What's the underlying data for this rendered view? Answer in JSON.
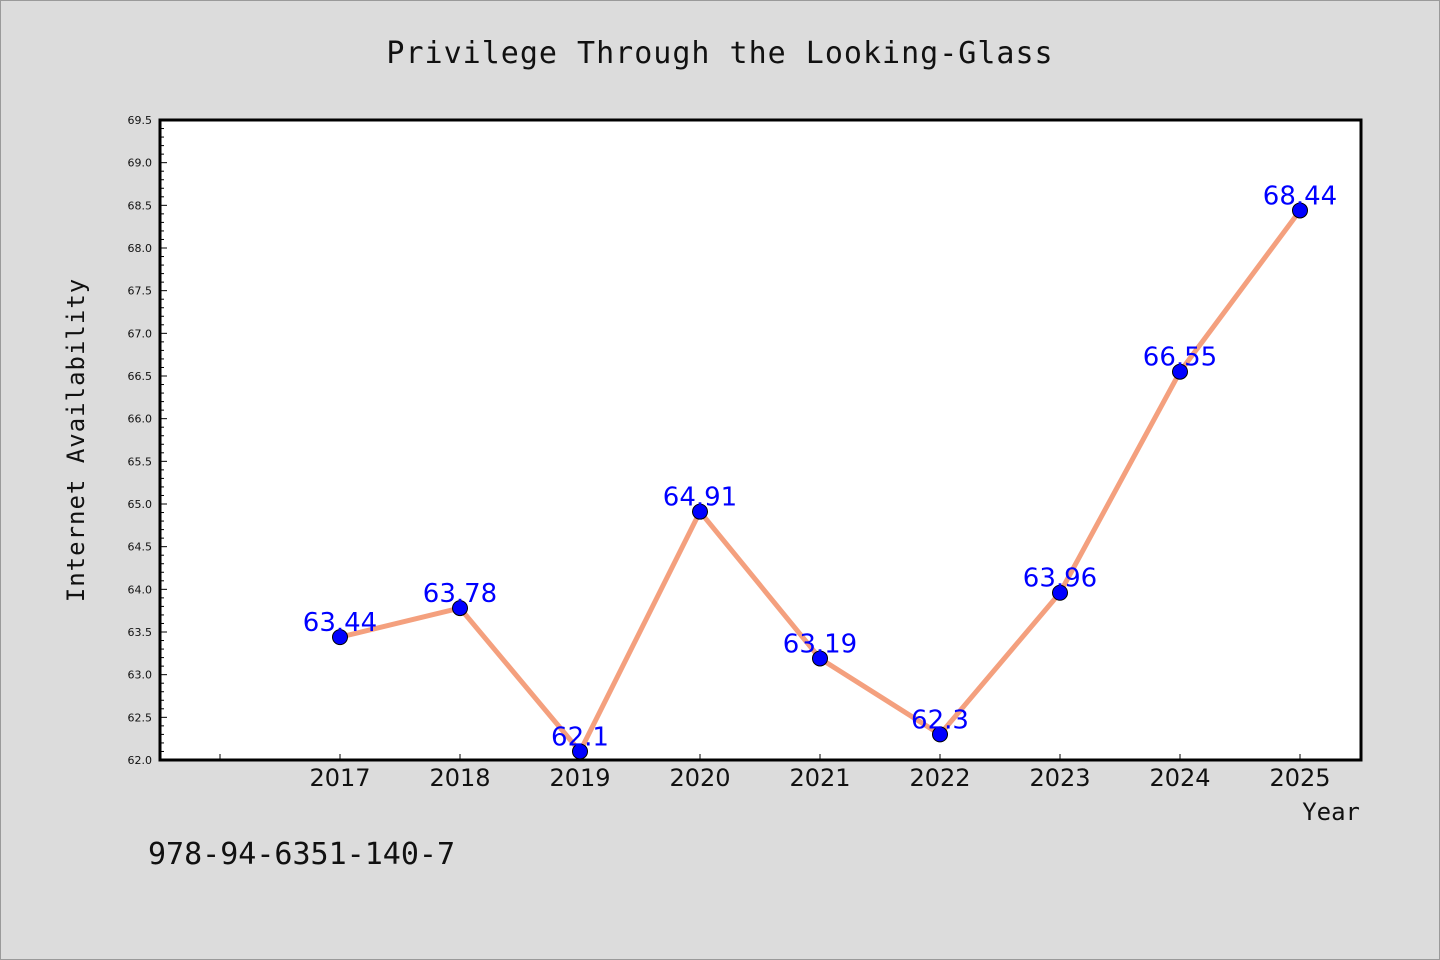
{
  "chart_data": {
    "type": "line",
    "title": "Privilege Through the Looking-Glass",
    "xlabel": "Year",
    "ylabel": "Internet Availability",
    "categories": [
      "2017",
      "2018",
      "2019",
      "2020",
      "2021",
      "2022",
      "2023",
      "2024",
      "2025"
    ],
    "series": [
      {
        "values": [
          63.44,
          63.78,
          62.1,
          64.91,
          63.19,
          62.3,
          63.96,
          66.55,
          68.44
        ],
        "data_labels": [
          "63.44",
          "63.78",
          "62.1",
          "64.91",
          "63.19",
          "62.3",
          "63.96",
          "66.55",
          "68.44"
        ],
        "line_color": "#f4a07e",
        "marker_color": "#0000ff"
      }
    ],
    "ylim": [
      62.0,
      69.5
    ],
    "yticks": [
      "62.0",
      "62.5",
      "63.0",
      "63.5",
      "64.0",
      "64.5",
      "65.0",
      "65.5",
      "66.0",
      "66.5",
      "67.0",
      "67.5",
      "68.0",
      "68.5",
      "69.0",
      "69.5"
    ],
    "grid": false,
    "legend": "none"
  },
  "annotation": "978-94-6351-140-7"
}
